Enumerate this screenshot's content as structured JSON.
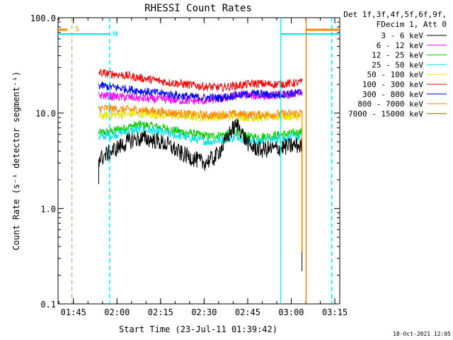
{
  "chart_data": {
    "type": "line",
    "title": "RHESSI Count Rates",
    "xlabel": "Start Time (23-Jul-11 01:39:42)",
    "ylabel": "Count Rate (s⁻¹ detector segment⁻¹)",
    "yscale": "log",
    "ylim": [
      0.1,
      100.0
    ],
    "xlim_minutes": [
      0,
      97
    ],
    "yticks": [
      {
        "value": 0.1,
        "label": "0.1"
      },
      {
        "value": 1.0,
        "label": "1.0"
      },
      {
        "value": 10.0,
        "label": "10.0"
      },
      {
        "value": 100.0,
        "label": "100.0"
      }
    ],
    "xticks": [
      {
        "minutes": 5.3,
        "label": "01:45"
      },
      {
        "minutes": 20.3,
        "label": "02:00"
      },
      {
        "minutes": 35.3,
        "label": "02:15"
      },
      {
        "minutes": 50.3,
        "label": "02:30"
      },
      {
        "minutes": 65.3,
        "label": "02:45"
      },
      {
        "minutes": 80.3,
        "label": "03:00"
      },
      {
        "minutes": 95.3,
        "label": "03:15"
      }
    ],
    "legend_header": [
      "Det 1f,3f,4f,5f,6f,9f,",
      "FDecim 1, Att 0"
    ],
    "legend_position": "right",
    "series": [
      {
        "name": "3 - 6 keV",
        "color": "#000000",
        "x": [
          14,
          15,
          18,
          22,
          26,
          30,
          34,
          38,
          42,
          46,
          50,
          54,
          57,
          60,
          62,
          64,
          66,
          70,
          74,
          78,
          82,
          84
        ],
        "y": [
          3.3,
          3.4,
          3.9,
          4.6,
          5.3,
          5.4,
          5.1,
          4.6,
          3.8,
          3.4,
          3.0,
          3.4,
          4.6,
          6.8,
          7.5,
          5.6,
          4.5,
          4.1,
          4.2,
          4.4,
          4.6,
          4.5
        ]
      },
      {
        "name": "6 - 12 keV",
        "color": "#ff00ff",
        "x": [
          14,
          20,
          26,
          32,
          38,
          44,
          50,
          56,
          60,
          64,
          70,
          76,
          84
        ],
        "y": [
          15.5,
          14.8,
          14.5,
          14.0,
          13.8,
          13.5,
          13.5,
          14.0,
          15.0,
          15.5,
          15.0,
          15.5,
          16.0
        ]
      },
      {
        "name": "12 - 25 keV",
        "color": "#00cc00",
        "x": [
          14,
          18,
          22,
          28,
          34,
          40,
          46,
          52,
          58,
          62,
          66,
          72,
          78,
          84
        ],
        "y": [
          6.2,
          6.4,
          6.9,
          7.6,
          7.2,
          6.6,
          6.1,
          5.7,
          6.0,
          6.4,
          5.6,
          5.7,
          6.0,
          6.3
        ]
      },
      {
        "name": "25 - 50 keV",
        "color": "#00e5e5",
        "x": [
          14,
          18,
          22,
          28,
          34,
          40,
          46,
          52,
          58,
          62,
          66,
          72,
          78,
          84
        ],
        "y": [
          5.6,
          5.8,
          6.2,
          6.7,
          6.4,
          5.9,
          5.4,
          5.0,
          5.3,
          5.7,
          5.0,
          5.1,
          5.4,
          5.7
        ]
      },
      {
        "name": "50 - 100 keV",
        "color": "#e5e500",
        "x": [
          14,
          20,
          28,
          36,
          44,
          52,
          60,
          68,
          76,
          84
        ],
        "y": [
          9.3,
          9.6,
          9.8,
          9.5,
          9.2,
          9.0,
          9.3,
          8.9,
          9.1,
          9.3
        ]
      },
      {
        "name": "100 - 300 keV",
        "color": "#ff0000",
        "x": [
          14,
          20,
          26,
          32,
          38,
          44,
          50,
          56,
          62,
          68,
          74,
          80,
          84
        ],
        "y": [
          26.5,
          25.5,
          24.0,
          22.5,
          21.0,
          20.0,
          19.0,
          18.5,
          19.5,
          20.5,
          20.0,
          20.5,
          21.0
        ]
      },
      {
        "name": "300 - 800 keV",
        "color": "#0000ff",
        "x": [
          14,
          20,
          26,
          32,
          38,
          44,
          50,
          56,
          62,
          68,
          74,
          80,
          84
        ],
        "y": [
          19.5,
          18.5,
          17.5,
          16.5,
          15.8,
          15.0,
          14.5,
          14.5,
          15.5,
          16.0,
          15.5,
          16.0,
          16.5
        ]
      },
      {
        "name": "800 - 7000 keV",
        "color": "#ff8800",
        "x": [
          14,
          20,
          28,
          36,
          44,
          52,
          60,
          68,
          76,
          84
        ],
        "y": [
          11.3,
          11.0,
          10.8,
          10.3,
          9.8,
          9.5,
          9.8,
          9.6,
          9.8,
          10.0
        ]
      },
      {
        "name": "7000 - 15000 keV",
        "color": "#996600",
        "x": [],
        "y": []
      }
    ],
    "annotations": [
      {
        "label": "S",
        "color": "#ff8800"
      },
      {
        "label": "N",
        "color": "#00e5e5"
      }
    ],
    "footer": "18-Oct-2021 12:05"
  }
}
